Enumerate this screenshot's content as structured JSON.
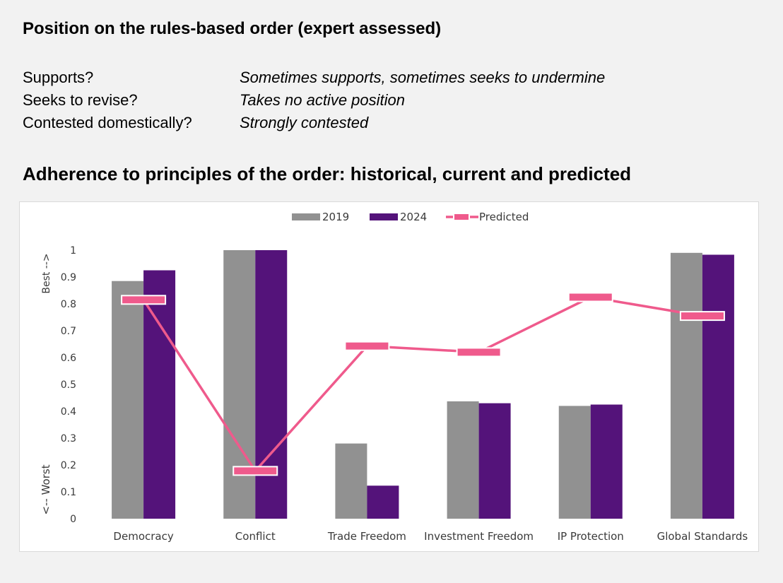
{
  "header": {
    "title": "Position on the rules-based order (expert assessed)"
  },
  "position": [
    {
      "label": "Supports?",
      "value": "Sometimes supports, sometimes seeks to undermine"
    },
    {
      "label": "Seeks to revise?",
      "value": "Takes no active position"
    },
    {
      "label": "Contested domestically?",
      "value": "Strongly contested"
    }
  ],
  "section2": {
    "title": "Adherence to principles of the order: historical, current and predicted"
  },
  "colors": {
    "s2019": "#919191",
    "s2024": "#54137a",
    "predicted": "#ef5a8c"
  },
  "chart_data": {
    "type": "bar",
    "categories": [
      "Democracy",
      "Conflict",
      "Trade Freedom",
      "Investment Freedom",
      "IP Protection",
      "Global Standards"
    ],
    "series": [
      {
        "name": "2019",
        "type": "bar",
        "values": [
          0.885,
          1.0,
          0.28,
          0.437,
          0.42,
          0.99
        ]
      },
      {
        "name": "2024",
        "type": "bar",
        "values": [
          0.925,
          1.0,
          0.123,
          0.43,
          0.425,
          0.983
        ]
      },
      {
        "name": "Predicted",
        "type": "line",
        "values": [
          0.815,
          0.178,
          0.643,
          0.62,
          0.825,
          0.755
        ]
      }
    ],
    "ylim": [
      0,
      1
    ],
    "yticks": [
      "0",
      "0.1",
      "0.2",
      "0.3",
      "0.4",
      "0.5",
      "0.6",
      "0.7",
      "0.8",
      "0.9",
      "1"
    ],
    "y_annotations": {
      "top": "Best -->",
      "bottom": "<-- Worst"
    },
    "legend": "top-center",
    "grid": false
  }
}
